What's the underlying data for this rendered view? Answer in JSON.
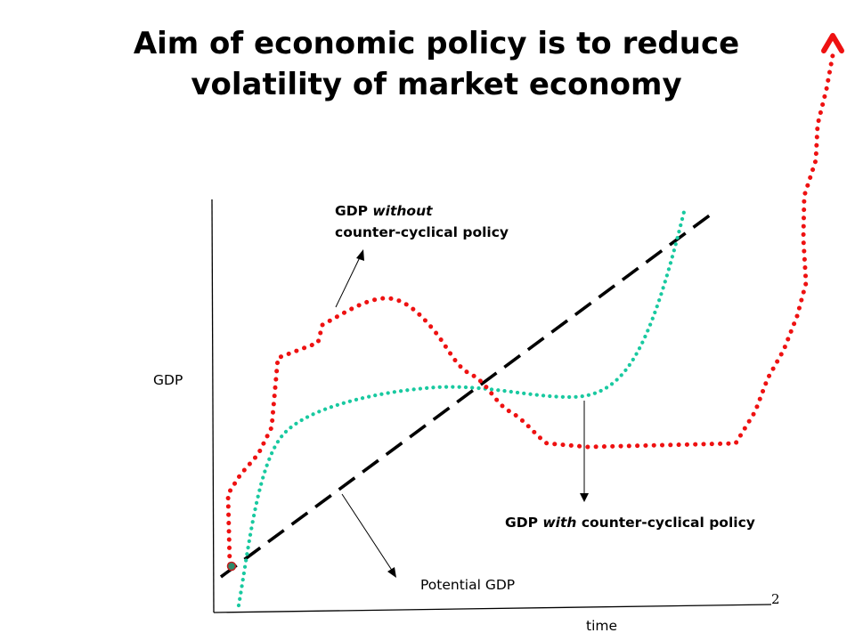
{
  "title": {
    "line1": "Aim of economic policy is to reduce",
    "line2": "volatility of market economy"
  },
  "labels": {
    "without": {
      "prefix": "GDP ",
      "emph": "without",
      "line2": "counter-cyclical policy"
    },
    "with": {
      "prefix": "GDP ",
      "emph": "with",
      "suffix": " counter-cyclical policy"
    },
    "potential": "Potential GDP",
    "y_axis": "GDP",
    "x_axis": "time"
  },
  "page_number": "2",
  "colors": {
    "without_policy": "#ee1111",
    "with_policy": "#19c9a0",
    "potential": "#000000",
    "axes": "#000000"
  }
}
